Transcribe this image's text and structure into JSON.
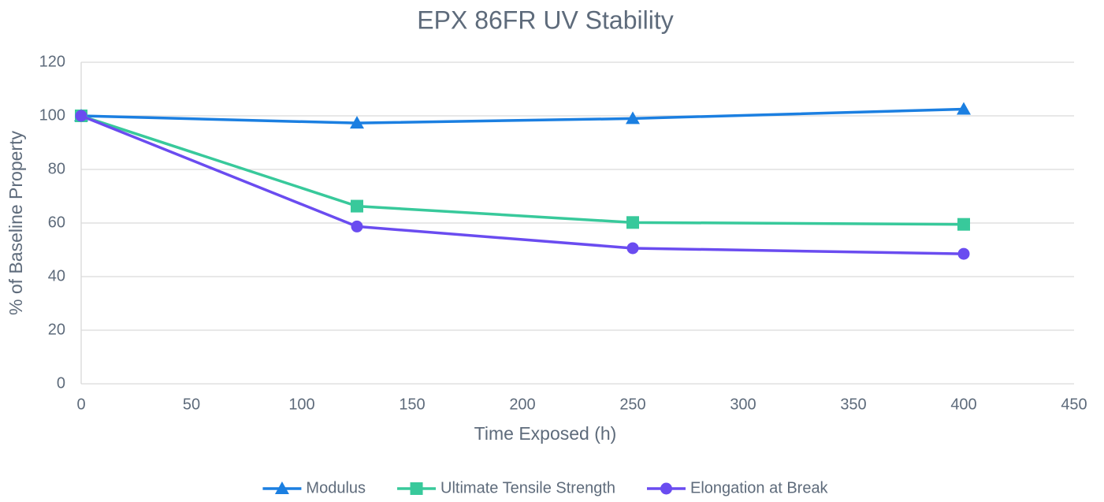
{
  "chart_data": {
    "type": "line",
    "title": "EPX 86FR UV Stability",
    "x_label": "Time Exposed (h)",
    "y_label": "% of Baseline Property",
    "x": [
      0,
      125,
      250,
      400
    ],
    "series": [
      {
        "name": "Modulus",
        "color": "#1b7fe1",
        "marker": "triangle",
        "values": [
          100,
          97.3,
          99,
          102.5
        ]
      },
      {
        "name": "Ultimate Tensile Strength",
        "color": "#38c99b",
        "marker": "square",
        "values": [
          100,
          66.3,
          60.2,
          59.5
        ]
      },
      {
        "name": "Elongation at Break",
        "color": "#6a4cf0",
        "marker": "circle",
        "values": [
          100,
          58.7,
          50.6,
          48.5
        ]
      }
    ],
    "xlim": [
      0,
      450
    ],
    "xticks": [
      0,
      50,
      100,
      150,
      200,
      250,
      300,
      350,
      400,
      450
    ],
    "ylim": [
      0,
      120
    ],
    "yticks": [
      0,
      20,
      40,
      60,
      80,
      100,
      120
    ],
    "grid": true,
    "legend": "bottom"
  }
}
